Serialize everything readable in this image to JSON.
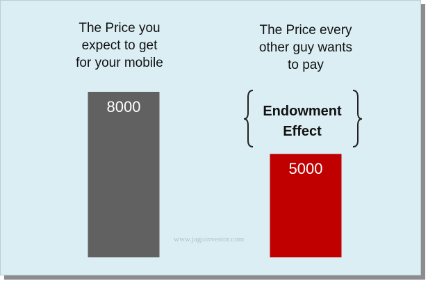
{
  "chart_data": {
    "type": "bar",
    "categories": [
      "The Price you\nexpect to get\nfor your mobile",
      "The Price every\nother guy wants\nto pay"
    ],
    "values": [
      8000,
      5000
    ],
    "colors": [
      "#616161",
      "#c00000"
    ],
    "annotation": "Endowment\nEffect",
    "watermark": "www.jagoinvestor.com"
  }
}
